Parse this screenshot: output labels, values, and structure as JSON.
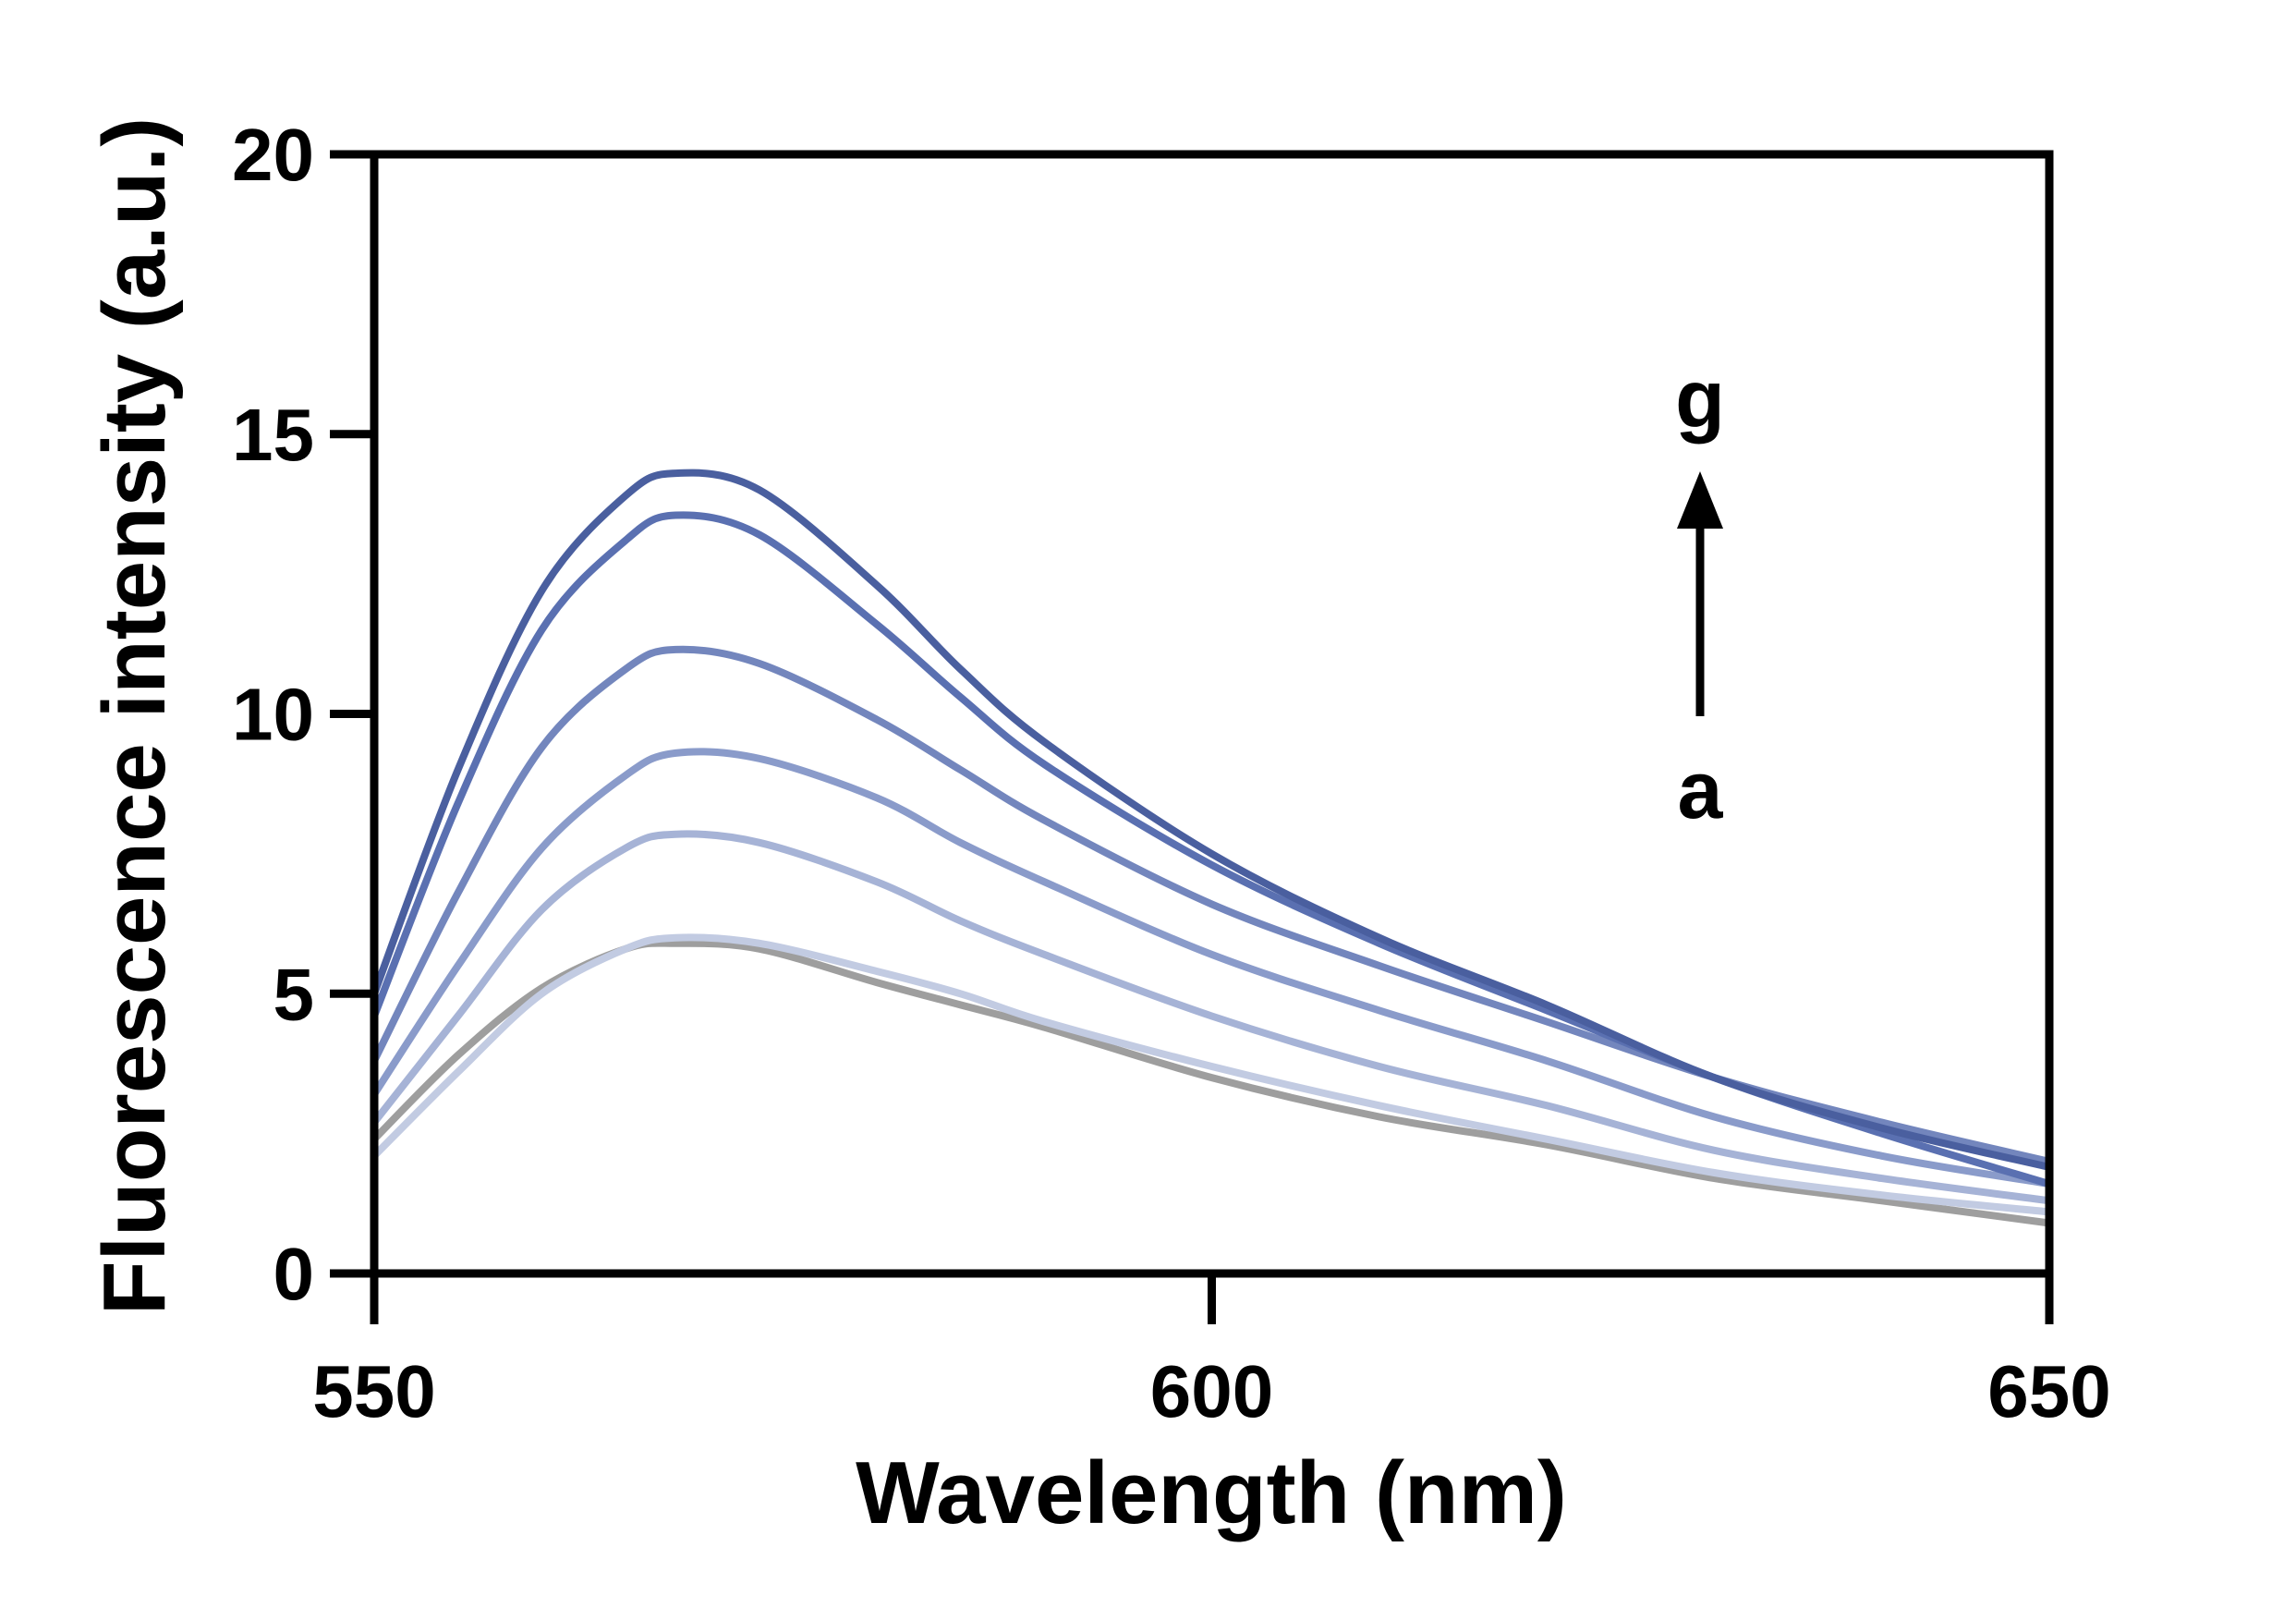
{
  "chart_data": {
    "type": "line",
    "title": "",
    "xlabel": "Wavelength (nm)",
    "ylabel": "Fluorescence intensity (a.u.)",
    "xlim": [
      550,
      650
    ],
    "ylim": [
      0,
      20
    ],
    "xticks": [
      "550",
      "600",
      "650"
    ],
    "yticks": [
      "0",
      "5",
      "10",
      "15",
      "20"
    ],
    "grid": false,
    "legend": "none",
    "annotations": {
      "top_label": "g",
      "bottom_label": "a",
      "arrow": "up"
    },
    "x": [
      550,
      555,
      560,
      565,
      568,
      573,
      580,
      585,
      590,
      600,
      610,
      620,
      630,
      640,
      650
    ],
    "series": [
      {
        "color": "#9e9e9e",
        "values": [
          2.4,
          3.9,
          5.1,
          5.8,
          5.9,
          5.8,
          5.2,
          4.8,
          4.4,
          3.5,
          2.8,
          2.3,
          1.7,
          1.3,
          0.9
        ]
      },
      {
        "color": "#c2cbe2",
        "values": [
          2.1,
          3.6,
          5.0,
          5.8,
          6.0,
          5.9,
          5.4,
          5.0,
          4.5,
          3.7,
          3.0,
          2.4,
          1.8,
          1.4,
          1.1
        ]
      },
      {
        "color": "#a6b3d6",
        "values": [
          2.7,
          4.6,
          6.5,
          7.6,
          7.85,
          7.7,
          7.0,
          6.3,
          5.7,
          4.6,
          3.7,
          3.0,
          2.2,
          1.7,
          1.3
        ]
      },
      {
        "color": "#8a9bca",
        "values": [
          3.2,
          5.5,
          7.6,
          8.9,
          9.3,
          9.2,
          8.5,
          7.7,
          7.0,
          5.7,
          4.7,
          3.8,
          2.8,
          2.1,
          1.6
        ]
      },
      {
        "color": "#7386bd",
        "values": [
          3.8,
          6.8,
          9.4,
          10.8,
          11.15,
          10.9,
          9.9,
          9.0,
          8.1,
          6.6,
          5.5,
          4.5,
          3.5,
          2.7,
          2.0
        ]
      },
      {
        "color": "#5a70b1",
        "values": [
          4.6,
          8.4,
          11.5,
          13.1,
          13.55,
          13.2,
          11.6,
          10.3,
          9.1,
          7.3,
          5.9,
          4.7,
          3.5,
          2.5,
          1.6
        ]
      },
      {
        "color": "#4a5f9f",
        "values": [
          5.0,
          9.0,
          12.2,
          13.9,
          14.3,
          14.0,
          12.3,
          10.8,
          9.5,
          7.5,
          6.0,
          4.8,
          3.5,
          2.6,
          1.9
        ]
      }
    ]
  }
}
